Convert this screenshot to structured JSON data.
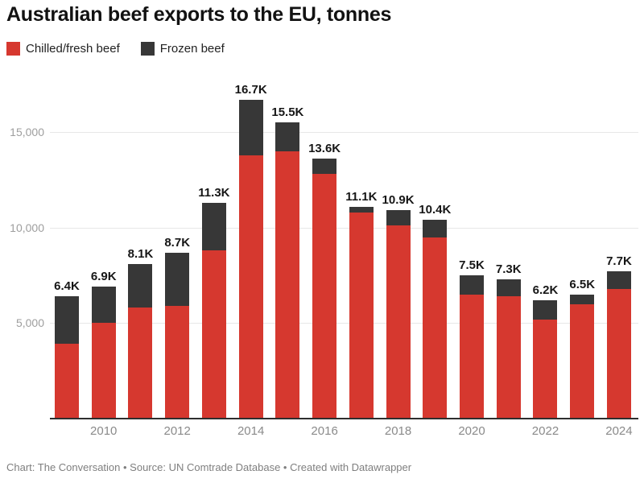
{
  "title": "Australian beef exports to the EU, tonnes",
  "legend": [
    {
      "label": "Chilled/fresh beef",
      "color": "#d6382f"
    },
    {
      "label": "Frozen beef",
      "color": "#373737"
    }
  ],
  "footer": "Chart: The Conversation • Source: UN Comtrade Database • Created with Datawrapper",
  "colors": {
    "chilled": "#d6382f",
    "frozen": "#373737",
    "gridline": "#e7e7e7",
    "baseline": "#2e2e2e",
    "ytick_text": "#9e9e9e",
    "xtick_text": "#8a8a8a",
    "title_text": "#121212",
    "footer_text": "#7f7f7f"
  },
  "chart_data": {
    "type": "bar",
    "stacked": true,
    "title": "Australian beef exports to the EU, tonnes",
    "xlabel": "",
    "ylabel": "tonnes",
    "grid": true,
    "legend_position": "top-left",
    "categories": [
      "2009",
      "2010",
      "2011",
      "2012",
      "2013",
      "2014",
      "2015",
      "2016",
      "2017",
      "2018",
      "2019",
      "2020",
      "2021",
      "2022",
      "2023",
      "2024"
    ],
    "x_tick_labels": [
      "2010",
      "2012",
      "2014",
      "2016",
      "2018",
      "2020",
      "2022",
      "2024"
    ],
    "yticks": [
      5000,
      10000,
      15000
    ],
    "ytick_labels": [
      "5,000",
      "10,000",
      "15,000"
    ],
    "ylim": [
      0,
      17500
    ],
    "series": [
      {
        "name": "Chilled/fresh beef",
        "color": "#d6382f",
        "values": [
          3900,
          5000,
          5800,
          5900,
          8800,
          13800,
          14000,
          12800,
          10800,
          10100,
          9500,
          6500,
          6400,
          5200,
          6000,
          6800
        ]
      },
      {
        "name": "Frozen beef",
        "color": "#373737",
        "values": [
          2500,
          1900,
          2300,
          2800,
          2500,
          2900,
          1500,
          800,
          300,
          800,
          900,
          1000,
          900,
          1000,
          500,
          900
        ]
      }
    ],
    "totals": [
      6400,
      6900,
      8100,
      8700,
      11300,
      16700,
      15500,
      13600,
      11100,
      10900,
      10400,
      7500,
      7300,
      6200,
      6500,
      7700
    ],
    "total_labels": [
      "6.4K",
      "6.9K",
      "8.1K",
      "8.7K",
      "11.3K",
      "16.7K",
      "15.5K",
      "13.6K",
      "11.1K",
      "10.9K",
      "10.4K",
      "7.5K",
      "7.3K",
      "6.2K",
      "6.5K",
      "7.7K"
    ]
  }
}
